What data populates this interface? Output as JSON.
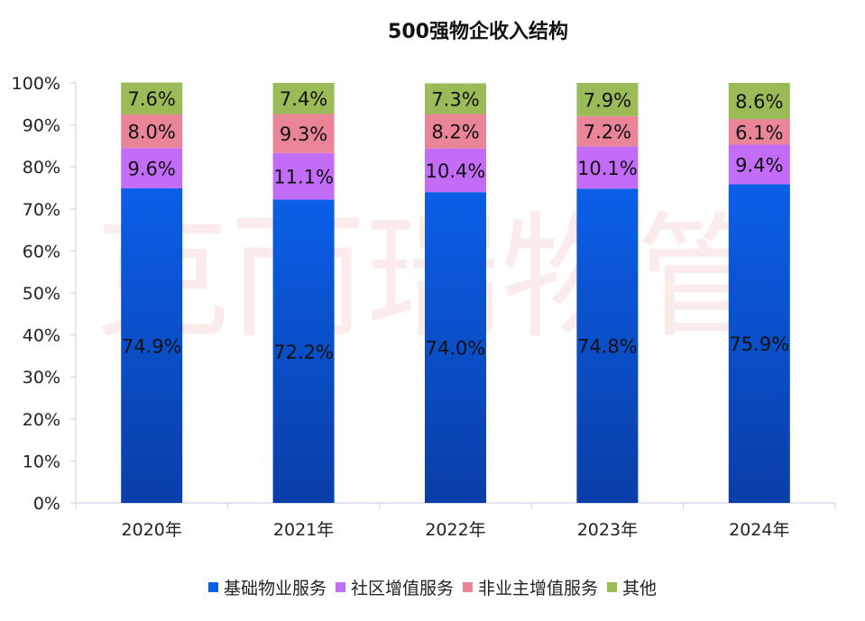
{
  "chart_data": {
    "type": "bar",
    "stacked": true,
    "percent_stacked": true,
    "title": "500强物企收入结构",
    "watermark": "克而瑞物管",
    "categories": [
      "2020年",
      "2021年",
      "2022年",
      "2023年",
      "2024年"
    ],
    "ylim": [
      0,
      100
    ],
    "y_ticks": [
      "0%",
      "10%",
      "20%",
      "30%",
      "40%",
      "50%",
      "60%",
      "70%",
      "80%",
      "90%",
      "100%"
    ],
    "grid": false,
    "legend_position": "bottom",
    "series": [
      {
        "name": "基础物业服务",
        "values": [
          74.9,
          72.2,
          74.0,
          74.8,
          75.9
        ],
        "labels": [
          "74.9%",
          "72.2%",
          "74.0%",
          "74.8%",
          "75.9%"
        ],
        "color": "#0a5fe8",
        "color_dark": "#0a3ea8"
      },
      {
        "name": "社区增值服务",
        "values": [
          9.6,
          11.1,
          10.4,
          10.1,
          9.4
        ],
        "labels": [
          "9.6%",
          "11.1%",
          "10.4%",
          "10.1%",
          "9.4%"
        ],
        "color": "#c26cf7"
      },
      {
        "name": "非业主增值服务",
        "values": [
          8.0,
          9.3,
          8.2,
          7.2,
          6.1
        ],
        "labels": [
          "8.0%",
          "9.3%",
          "8.2%",
          "7.2%",
          "6.1%"
        ],
        "color": "#e98597"
      },
      {
        "name": "其他",
        "values": [
          7.6,
          7.4,
          7.3,
          7.9,
          8.6
        ],
        "labels": [
          "7.6%",
          "7.4%",
          "7.3%",
          "7.9%",
          "8.6%"
        ],
        "color": "#9bbb59"
      }
    ]
  }
}
